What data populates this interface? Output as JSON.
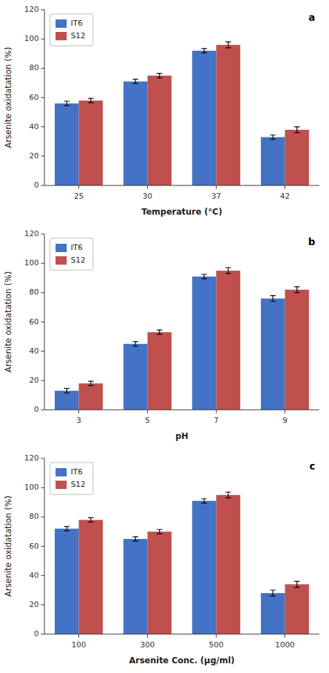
{
  "chart_data": [
    {
      "type": "bar",
      "categories": [
        "25",
        "30",
        "37",
        "42"
      ],
      "xlabel": "Temperature (°C)",
      "ylabel": "Arsenite oxidatation (%)",
      "series": [
        {
          "name": "IT6",
          "color": "#4472C4",
          "values": [
            56,
            71,
            92,
            33
          ],
          "errors": [
            1.5,
            1.5,
            1.5,
            1.5
          ]
        },
        {
          "name": "S12",
          "color": "#C0504D",
          "values": [
            58,
            75,
            96,
            38
          ],
          "errors": [
            1.5,
            1.5,
            2.0,
            2.0
          ]
        }
      ],
      "ylim": [
        0,
        120
      ],
      "yticks": [
        0,
        20,
        40,
        60,
        80,
        100,
        120
      ],
      "grid": false,
      "legend": "upper left",
      "annotations": [
        "a"
      ]
    },
    {
      "type": "bar",
      "categories": [
        "3",
        "5",
        "7",
        "9"
      ],
      "xlabel": "pH",
      "ylabel": "Arsenite oxidatation (%)",
      "series": [
        {
          "name": "IT6",
          "color": "#4472C4",
          "values": [
            13,
            45,
            91,
            76
          ],
          "errors": [
            1.5,
            1.5,
            1.5,
            2.0
          ]
        },
        {
          "name": "S12",
          "color": "#C0504D",
          "values": [
            18,
            53,
            95,
            82
          ],
          "errors": [
            1.5,
            1.5,
            2.0,
            2.0
          ]
        }
      ],
      "ylim": [
        0,
        120
      ],
      "yticks": [
        0,
        20,
        40,
        60,
        80,
        100,
        120
      ],
      "grid": false,
      "legend": "upper left",
      "annotations": [
        "b"
      ]
    },
    {
      "type": "bar",
      "categories": [
        "100",
        "300",
        "500",
        "1000"
      ],
      "xlabel": "Arsenite Conc. (μg/ml)",
      "ylabel": "Arsenite oxidatation (%)",
      "series": [
        {
          "name": "IT6",
          "color": "#4472C4",
          "values": [
            72,
            65,
            91,
            28
          ],
          "errors": [
            1.5,
            1.5,
            1.5,
            2.0
          ]
        },
        {
          "name": "S12",
          "color": "#C0504D",
          "values": [
            78,
            70,
            95,
            34
          ],
          "errors": [
            1.5,
            1.5,
            2.0,
            2.0
          ]
        }
      ],
      "ylim": [
        0,
        120
      ],
      "yticks": [
        0,
        20,
        40,
        60,
        80,
        100,
        120
      ],
      "grid": false,
      "legend": "upper left",
      "annotations": [
        "c"
      ]
    }
  ]
}
